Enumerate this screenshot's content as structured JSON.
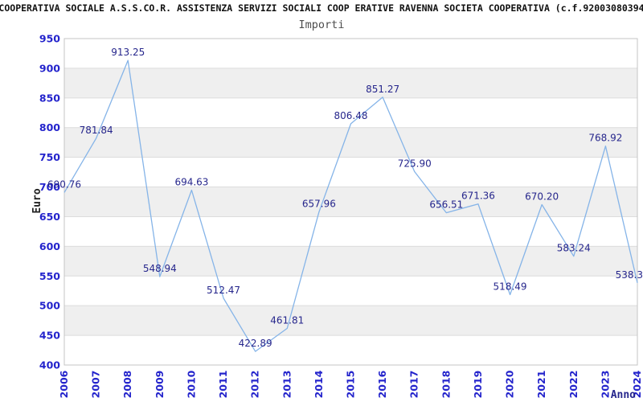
{
  "header": {
    "title": "COOPERATIVA SOCIALE A.S.S.CO.R. ASSISTENZA SERVIZI SOCIALI COOP ERATIVE RAVENNA SOCIETA COOPERATIVA (c.f.92003080394"
  },
  "chart_data": {
    "type": "line",
    "title": "Importi",
    "xlabel": "Anno",
    "ylabel": "Euro",
    "x": [
      2006,
      2007,
      2008,
      2009,
      2010,
      2011,
      2012,
      2013,
      2014,
      2015,
      2016,
      2017,
      2018,
      2019,
      2020,
      2021,
      2022,
      2023,
      2024
    ],
    "values": [
      690.76,
      781.84,
      913.25,
      548.94,
      694.63,
      512.47,
      422.89,
      461.81,
      657.96,
      806.48,
      851.27,
      725.9,
      656.51,
      671.36,
      518.49,
      670.2,
      583.24,
      768.92,
      538.3
    ],
    "point_labels": [
      "690.76",
      "781.84",
      "913.25",
      "548.94",
      "694.63",
      "512.47",
      "422.89",
      "461.81",
      "657.96",
      "806.48",
      "851.27",
      "725.90",
      "656.51",
      "671.36",
      "518.49",
      "670.20",
      "583.24",
      "768.92",
      "538.3"
    ],
    "ylim": [
      400,
      950
    ],
    "ytick_step": 50,
    "yticks": [
      400,
      450,
      500,
      550,
      600,
      650,
      700,
      750,
      800,
      850,
      900,
      950
    ],
    "grid": "horizontal-bands-alternating",
    "legend": "none",
    "colors": {
      "line": "#85b4e8",
      "point_label": "#26268c",
      "tick_label": "#2424cc",
      "band": "#efefef",
      "grid_line": "#dcdcdc",
      "plot_border": "#c4c4c4",
      "axis_title": "#222222",
      "xaxis_title": "#26268c"
    }
  }
}
